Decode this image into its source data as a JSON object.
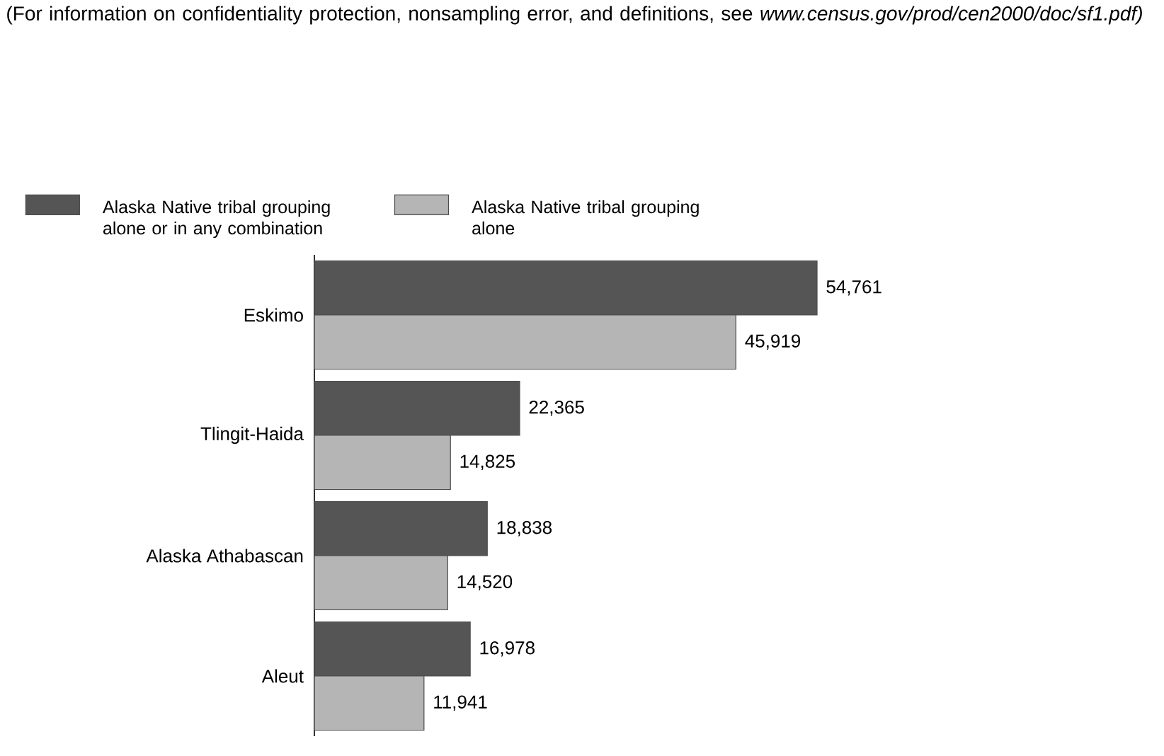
{
  "chart_data": {
    "type": "bar",
    "orientation": "horizontal",
    "categories": [
      "Eskimo",
      "Tlingit-Haida",
      "Alaska Athabascan",
      "Aleut"
    ],
    "series": [
      {
        "name": "Alaska Native tribal grouping alone or in any combination",
        "color": "#555555",
        "values": [
          54761,
          22365,
          18838,
          16978
        ],
        "value_labels": [
          "54,761",
          "22,365",
          "18,838",
          "16,978"
        ]
      },
      {
        "name": "Alaska Native tribal grouping alone",
        "color": "#b5b5b5",
        "values": [
          45919,
          14825,
          14520,
          11941
        ],
        "value_labels": [
          "45,919",
          "14,825",
          "14,520",
          "11,941"
        ]
      }
    ],
    "tick_labels": "y",
    "legend": "top left",
    "annotations": [
      "(For information on confidentiality protection, nonsampling error, and definitions, see *www.census.gov/prod/cen2000/doc/sf1.pdf)*"
    ]
  }
}
